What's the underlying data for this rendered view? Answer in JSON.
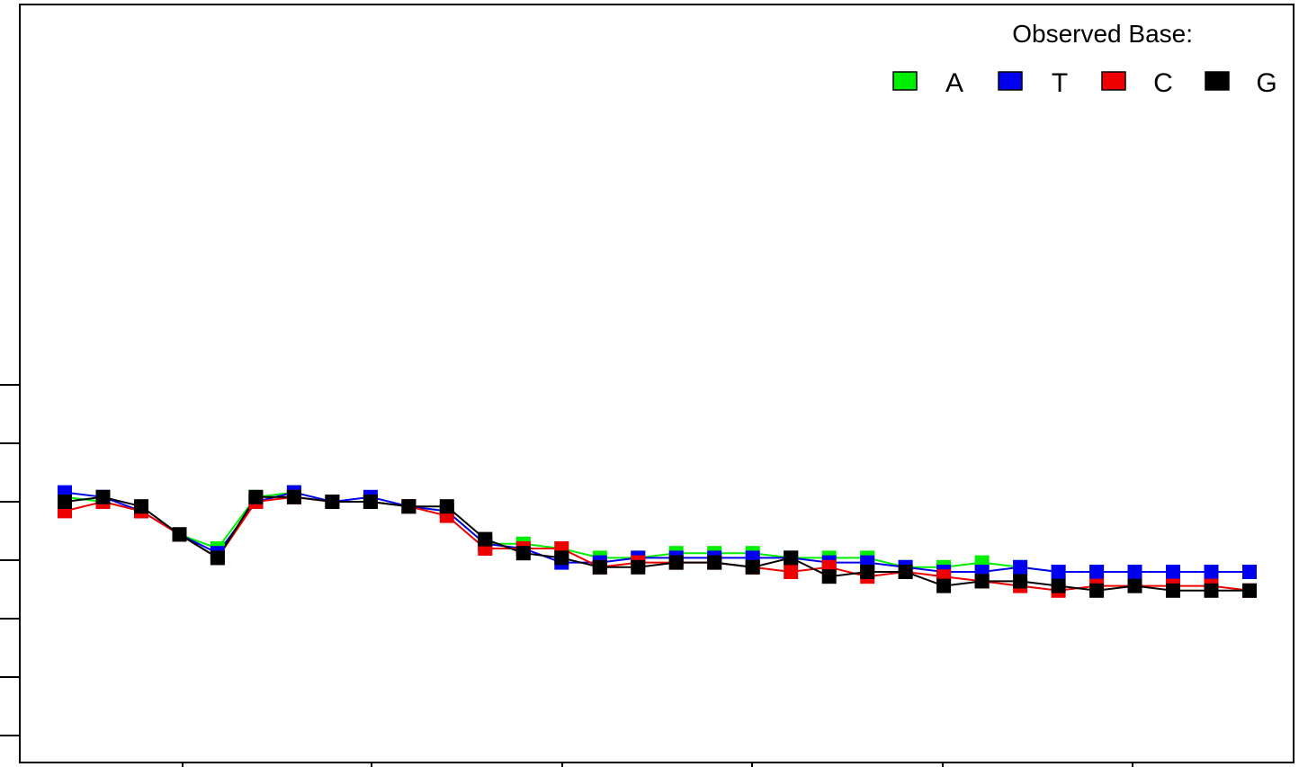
{
  "chart_data": {
    "type": "line",
    "title": "",
    "xlabel": "",
    "ylabel": "",
    "grid": false,
    "legend": {
      "title": "Observed Base:",
      "placement": "top-right"
    },
    "x": [
      1,
      2,
      3,
      4,
      5,
      6,
      7,
      8,
      9,
      10,
      11,
      12,
      13,
      14,
      15,
      16,
      17,
      18,
      19,
      20,
      21,
      22,
      23,
      24,
      25,
      26,
      27,
      28,
      29,
      30,
      31,
      32
    ],
    "series": [
      {
        "name": "A",
        "color": "#00ee00",
        "values": [
          0.51,
          0.5,
          0.48,
          0.43,
          0.4,
          0.51,
          0.52,
          0.5,
          0.5,
          0.49,
          0.48,
          0.41,
          0.41,
          0.4,
          0.38,
          0.38,
          0.39,
          0.39,
          0.39,
          0.38,
          0.38,
          0.38,
          0.36,
          0.36,
          0.37,
          0.36,
          0.35,
          0.35,
          0.35,
          0.35,
          0.35,
          0.35
        ]
      },
      {
        "name": "T",
        "color": "#0000ee",
        "values": [
          0.52,
          0.51,
          0.48,
          0.43,
          0.39,
          0.5,
          0.52,
          0.5,
          0.51,
          0.49,
          0.48,
          0.41,
          0.4,
          0.37,
          0.37,
          0.38,
          0.38,
          0.38,
          0.38,
          0.38,
          0.37,
          0.37,
          0.36,
          0.35,
          0.35,
          0.36,
          0.35,
          0.35,
          0.35,
          0.35,
          0.35,
          0.35
        ]
      },
      {
        "name": "C",
        "color": "#ee0000",
        "values": [
          0.48,
          0.5,
          0.48,
          0.43,
          0.38,
          0.5,
          0.51,
          0.5,
          0.5,
          0.49,
          0.47,
          0.4,
          0.4,
          0.4,
          0.36,
          0.37,
          0.37,
          0.37,
          0.36,
          0.35,
          0.36,
          0.34,
          0.35,
          0.34,
          0.33,
          0.32,
          0.31,
          0.32,
          0.32,
          0.32,
          0.32,
          0.31
        ]
      },
      {
        "name": "G",
        "color": "#000000",
        "values": [
          0.5,
          0.51,
          0.49,
          0.43,
          0.38,
          0.51,
          0.51,
          0.5,
          0.5,
          0.49,
          0.49,
          0.42,
          0.39,
          0.38,
          0.36,
          0.36,
          0.37,
          0.37,
          0.36,
          0.38,
          0.34,
          0.35,
          0.35,
          0.32,
          0.33,
          0.33,
          0.32,
          0.31,
          0.32,
          0.31,
          0.31,
          0.31
        ]
      }
    ]
  }
}
